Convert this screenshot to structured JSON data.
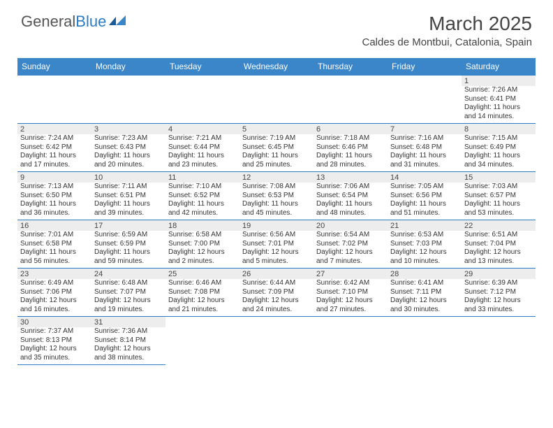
{
  "logo": {
    "brand1": "General",
    "brand2": "Blue"
  },
  "title": "March 2025",
  "location": "Caldes de Montbui, Catalonia, Spain",
  "colors": {
    "header_bg": "#3a86c8",
    "border": "#2b7cc4",
    "daynum_bg": "#ededed"
  },
  "days_of_week": [
    "Sunday",
    "Monday",
    "Tuesday",
    "Wednesday",
    "Thursday",
    "Friday",
    "Saturday"
  ],
  "weeks": [
    [
      null,
      null,
      null,
      null,
      null,
      null,
      {
        "n": "1",
        "sr": "7:26 AM",
        "ss": "6:41 PM",
        "dl1": "11 hours",
        "dl2": "and 14 minutes."
      }
    ],
    [
      {
        "n": "2",
        "sr": "7:24 AM",
        "ss": "6:42 PM",
        "dl1": "11 hours",
        "dl2": "and 17 minutes."
      },
      {
        "n": "3",
        "sr": "7:23 AM",
        "ss": "6:43 PM",
        "dl1": "11 hours",
        "dl2": "and 20 minutes."
      },
      {
        "n": "4",
        "sr": "7:21 AM",
        "ss": "6:44 PM",
        "dl1": "11 hours",
        "dl2": "and 23 minutes."
      },
      {
        "n": "5",
        "sr": "7:19 AM",
        "ss": "6:45 PM",
        "dl1": "11 hours",
        "dl2": "and 25 minutes."
      },
      {
        "n": "6",
        "sr": "7:18 AM",
        "ss": "6:46 PM",
        "dl1": "11 hours",
        "dl2": "and 28 minutes."
      },
      {
        "n": "7",
        "sr": "7:16 AM",
        "ss": "6:48 PM",
        "dl1": "11 hours",
        "dl2": "and 31 minutes."
      },
      {
        "n": "8",
        "sr": "7:15 AM",
        "ss": "6:49 PM",
        "dl1": "11 hours",
        "dl2": "and 34 minutes."
      }
    ],
    [
      {
        "n": "9",
        "sr": "7:13 AM",
        "ss": "6:50 PM",
        "dl1": "11 hours",
        "dl2": "and 36 minutes."
      },
      {
        "n": "10",
        "sr": "7:11 AM",
        "ss": "6:51 PM",
        "dl1": "11 hours",
        "dl2": "and 39 minutes."
      },
      {
        "n": "11",
        "sr": "7:10 AM",
        "ss": "6:52 PM",
        "dl1": "11 hours",
        "dl2": "and 42 minutes."
      },
      {
        "n": "12",
        "sr": "7:08 AM",
        "ss": "6:53 PM",
        "dl1": "11 hours",
        "dl2": "and 45 minutes."
      },
      {
        "n": "13",
        "sr": "7:06 AM",
        "ss": "6:54 PM",
        "dl1": "11 hours",
        "dl2": "and 48 minutes."
      },
      {
        "n": "14",
        "sr": "7:05 AM",
        "ss": "6:56 PM",
        "dl1": "11 hours",
        "dl2": "and 51 minutes."
      },
      {
        "n": "15",
        "sr": "7:03 AM",
        "ss": "6:57 PM",
        "dl1": "11 hours",
        "dl2": "and 53 minutes."
      }
    ],
    [
      {
        "n": "16",
        "sr": "7:01 AM",
        "ss": "6:58 PM",
        "dl1": "11 hours",
        "dl2": "and 56 minutes."
      },
      {
        "n": "17",
        "sr": "6:59 AM",
        "ss": "6:59 PM",
        "dl1": "11 hours",
        "dl2": "and 59 minutes."
      },
      {
        "n": "18",
        "sr": "6:58 AM",
        "ss": "7:00 PM",
        "dl1": "12 hours",
        "dl2": "and 2 minutes."
      },
      {
        "n": "19",
        "sr": "6:56 AM",
        "ss": "7:01 PM",
        "dl1": "12 hours",
        "dl2": "and 5 minutes."
      },
      {
        "n": "20",
        "sr": "6:54 AM",
        "ss": "7:02 PM",
        "dl1": "12 hours",
        "dl2": "and 7 minutes."
      },
      {
        "n": "21",
        "sr": "6:53 AM",
        "ss": "7:03 PM",
        "dl1": "12 hours",
        "dl2": "and 10 minutes."
      },
      {
        "n": "22",
        "sr": "6:51 AM",
        "ss": "7:04 PM",
        "dl1": "12 hours",
        "dl2": "and 13 minutes."
      }
    ],
    [
      {
        "n": "23",
        "sr": "6:49 AM",
        "ss": "7:06 PM",
        "dl1": "12 hours",
        "dl2": "and 16 minutes."
      },
      {
        "n": "24",
        "sr": "6:48 AM",
        "ss": "7:07 PM",
        "dl1": "12 hours",
        "dl2": "and 19 minutes."
      },
      {
        "n": "25",
        "sr": "6:46 AM",
        "ss": "7:08 PM",
        "dl1": "12 hours",
        "dl2": "and 21 minutes."
      },
      {
        "n": "26",
        "sr": "6:44 AM",
        "ss": "7:09 PM",
        "dl1": "12 hours",
        "dl2": "and 24 minutes."
      },
      {
        "n": "27",
        "sr": "6:42 AM",
        "ss": "7:10 PM",
        "dl1": "12 hours",
        "dl2": "and 27 minutes."
      },
      {
        "n": "28",
        "sr": "6:41 AM",
        "ss": "7:11 PM",
        "dl1": "12 hours",
        "dl2": "and 30 minutes."
      },
      {
        "n": "29",
        "sr": "6:39 AM",
        "ss": "7:12 PM",
        "dl1": "12 hours",
        "dl2": "and 33 minutes."
      }
    ],
    [
      {
        "n": "30",
        "sr": "7:37 AM",
        "ss": "8:13 PM",
        "dl1": "12 hours",
        "dl2": "and 35 minutes."
      },
      {
        "n": "31",
        "sr": "7:36 AM",
        "ss": "8:14 PM",
        "dl1": "12 hours",
        "dl2": "and 38 minutes."
      },
      null,
      null,
      null,
      null,
      null
    ]
  ],
  "labels": {
    "sunrise": "Sunrise:",
    "sunset": "Sunset:",
    "daylight": "Daylight:"
  }
}
